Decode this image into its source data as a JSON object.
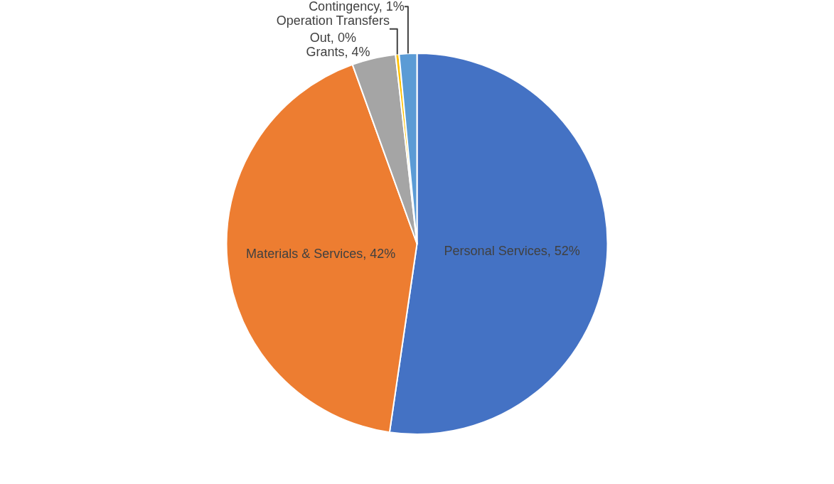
{
  "chart_data": {
    "type": "pie",
    "categories": [
      "Personal Services",
      "Materials & Services",
      "Grants",
      "Operation Transfers Out",
      "Contingency"
    ],
    "values": [
      52.3,
      42.2,
      3.7,
      0.3,
      1.5
    ],
    "value_labels": [
      "52%",
      "42%",
      "4%",
      "0%",
      "1%"
    ],
    "colors": [
      "#4472c4",
      "#ed7d31",
      "#a5a5a5",
      "#ffc000",
      "#5b9bd5"
    ],
    "legend": false
  }
}
